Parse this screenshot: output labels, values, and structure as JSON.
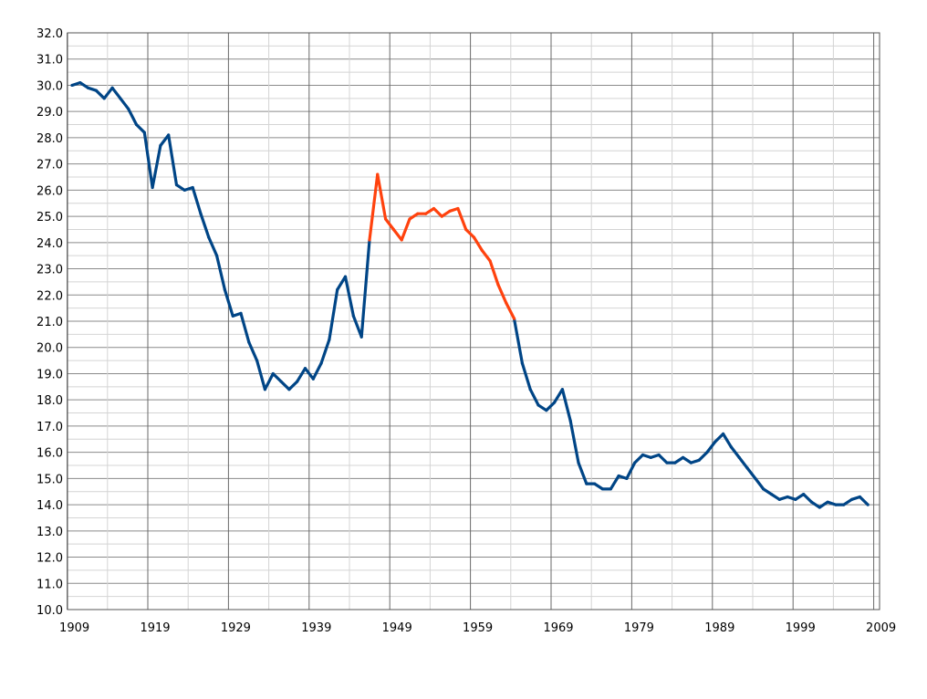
{
  "chart_data": {
    "type": "line",
    "title": "",
    "xlabel": "",
    "ylabel": "",
    "xlim": [
      1909,
      2009
    ],
    "ylim": [
      10.0,
      32.0
    ],
    "grid": true,
    "legend": "none",
    "x_tick_labels": [
      "1909",
      "1919",
      "1929",
      "1939",
      "1949",
      "1959",
      "1969",
      "1979",
      "1989",
      "1999",
      "2009"
    ],
    "y_tick_labels": [
      "10.0",
      "11.0",
      "12.0",
      "13.0",
      "14.0",
      "15.0",
      "16.0",
      "17.0",
      "18.0",
      "19.0",
      "20.0",
      "21.0",
      "22.0",
      "23.0",
      "24.0",
      "25.0",
      "26.0",
      "27.0",
      "28.0",
      "29.0",
      "30.0",
      "31.0",
      "32.0"
    ],
    "colors": {
      "main": "#004586",
      "highlight": "#ff420e"
    },
    "highlight_range": [
      1946,
      1964
    ],
    "x_start": 1909,
    "values": [
      30.0,
      30.1,
      29.9,
      29.8,
      29.5,
      29.9,
      29.5,
      29.1,
      28.5,
      28.2,
      26.1,
      27.7,
      28.1,
      26.2,
      26.0,
      26.1,
      25.1,
      24.2,
      23.5,
      22.2,
      21.2,
      21.3,
      20.2,
      19.5,
      18.4,
      19.0,
      18.7,
      18.4,
      18.7,
      19.2,
      18.8,
      19.4,
      20.3,
      22.2,
      22.7,
      21.2,
      20.4,
      24.1,
      26.6,
      24.9,
      24.5,
      24.1,
      24.9,
      25.1,
      25.1,
      25.3,
      25.0,
      25.2,
      25.3,
      24.5,
      24.2,
      23.7,
      23.3,
      22.4,
      21.7,
      21.1,
      19.4,
      18.4,
      17.8,
      17.6,
      17.9,
      18.4,
      17.2,
      15.6,
      14.8,
      14.8,
      14.6,
      14.6,
      15.1,
      15.0,
      15.6,
      15.9,
      15.8,
      15.9,
      15.6,
      15.6,
      15.8,
      15.6,
      15.7,
      16.0,
      16.4,
      16.7,
      16.2,
      15.8,
      15.4,
      15.0,
      14.6,
      14.4,
      14.2,
      14.3,
      14.2,
      14.4,
      14.1,
      13.9,
      14.1,
      14.0,
      14.0,
      14.2,
      14.3,
      14.0
    ]
  }
}
